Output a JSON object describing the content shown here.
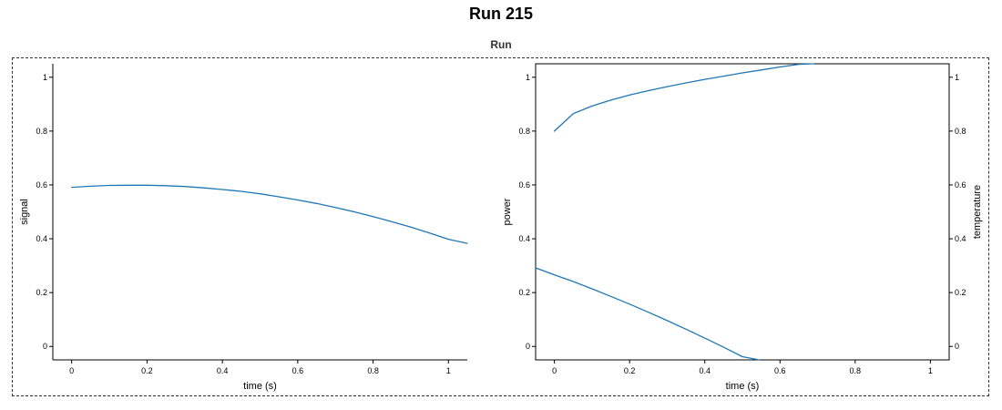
{
  "page": {
    "title": "Run 215",
    "group_title": "Run"
  },
  "colors": {
    "line": "#1f77b4",
    "axis": "#000000",
    "frame": "#333333"
  },
  "chart_data": [
    {
      "type": "line",
      "title": "",
      "xlabel": "time (s)",
      "ylabel": "signal",
      "xlim": [
        -0.05,
        1.05
      ],
      "ylim": [
        -0.05,
        1.05
      ],
      "xticks": [
        0,
        0.2,
        0.4,
        0.6,
        0.8,
        1
      ],
      "xtick_labels": [
        "0",
        "0.2",
        "0.4",
        "0.6",
        "0.8",
        "1"
      ],
      "yticks": [
        0,
        0.2,
        0.4,
        0.6,
        0.8,
        1
      ],
      "ytick_labels": [
        "0",
        "0.2",
        "0.4",
        "0.6",
        "0.8",
        "1"
      ],
      "grid": false,
      "series": [
        {
          "axis": "left",
          "x": [
            0,
            0.05,
            0.1,
            0.15,
            0.2,
            0.25,
            0.3,
            0.35,
            0.4,
            0.45,
            0.5,
            0.55,
            0.6,
            0.65,
            0.7,
            0.75,
            0.8,
            0.85,
            0.9,
            0.95,
            1.0,
            1.05
          ],
          "y": [
            0.591,
            0.595,
            0.598,
            0.599,
            0.599,
            0.597,
            0.594,
            0.589,
            0.583,
            0.576,
            0.567,
            0.556,
            0.544,
            0.531,
            0.516,
            0.5,
            0.482,
            0.463,
            0.443,
            0.421,
            0.398,
            0.383
          ]
        }
      ]
    },
    {
      "type": "line",
      "title": "",
      "xlabel": "time (s)",
      "ylabel": "power",
      "ylabel_right": "temperature",
      "xlim": [
        -0.05,
        1.05
      ],
      "ylim": [
        -0.05,
        1.05
      ],
      "ylim_right": [
        -0.05,
        1.05
      ],
      "xticks": [
        0,
        0.2,
        0.4,
        0.6,
        0.8,
        1
      ],
      "xtick_labels": [
        "0",
        "0.2",
        "0.4",
        "0.6",
        "0.8",
        "1"
      ],
      "yticks": [
        0,
        0.2,
        0.4,
        0.6,
        0.8,
        1
      ],
      "ytick_labels": [
        "0",
        "0.2",
        "0.4",
        "0.6",
        "0.8",
        "1"
      ],
      "yticks_right": [
        0,
        0.2,
        0.4,
        0.6,
        0.8,
        1
      ],
      "ytick_labels_right": [
        "0",
        "0.2",
        "0.4",
        "0.6",
        "0.8",
        "1"
      ],
      "grid": false,
      "boxed": true,
      "series": [
        {
          "axis": "left",
          "x": [
            0,
            0.05,
            0.1,
            0.15,
            0.2,
            0.25,
            0.3,
            0.35,
            0.4,
            0.45,
            0.5,
            0.55,
            0.6,
            0.65,
            0.69
          ],
          "y": [
            0.8,
            0.865,
            0.893,
            0.915,
            0.934,
            0.95,
            0.965,
            0.979,
            0.992,
            1.004,
            1.016,
            1.027,
            1.038,
            1.048,
            1.05
          ]
        },
        {
          "axis": "right",
          "x": [
            -0.05,
            0,
            0.05,
            0.1,
            0.15,
            0.2,
            0.25,
            0.3,
            0.35,
            0.4,
            0.45,
            0.5,
            0.545
          ],
          "y": [
            0.292,
            0.266,
            0.241,
            0.214,
            0.186,
            0.157,
            0.127,
            0.096,
            0.064,
            0.031,
            -0.003,
            -0.038,
            -0.05
          ]
        }
      ]
    }
  ]
}
